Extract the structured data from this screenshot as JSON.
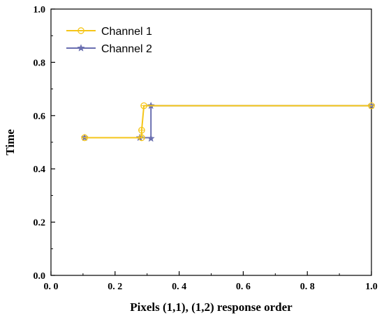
{
  "chart_data": {
    "type": "line",
    "title": "",
    "xlabel": "Pixels (1,1), (1,2) response order",
    "ylabel": "Time",
    "xlim": [
      0.0,
      1.0
    ],
    "ylim": [
      0.0,
      1.0
    ],
    "x_ticks": [
      0.0,
      0.2,
      0.4,
      0.6,
      0.8,
      1.0
    ],
    "x_tick_labels": [
      "0. 0",
      "0. 2",
      "0. 4",
      "0. 6",
      "0. 8",
      "1.0"
    ],
    "y_ticks": [
      0.0,
      0.2,
      0.4,
      0.6,
      0.8,
      1.0
    ],
    "y_tick_labels": [
      "0.0",
      "0.2",
      "0.4",
      "0.6",
      "0.8",
      "1.0"
    ],
    "grid": false,
    "legend_position": "top-left",
    "series": [
      {
        "name": "Channel 1",
        "color": "#f5c518",
        "marker": "circle",
        "x": [
          0.105,
          0.283,
          0.283,
          0.29,
          1.0
        ],
        "y": [
          0.517,
          0.517,
          0.545,
          0.637,
          0.637
        ],
        "step_points": [
          [
            0.105,
            0.517
          ],
          [
            0.283,
            0.517
          ],
          [
            0.283,
            0.545
          ],
          [
            0.29,
            0.637
          ],
          [
            1.0,
            0.637
          ]
        ],
        "marker_points": [
          [
            0.105,
            0.517
          ],
          [
            0.283,
            0.517
          ],
          [
            0.283,
            0.545
          ],
          [
            0.29,
            0.637
          ],
          [
            1.0,
            0.637
          ]
        ]
      },
      {
        "name": "Channel 2",
        "color": "#6a6fb0",
        "marker": "star",
        "x": [
          0.105,
          0.277,
          0.312,
          0.312,
          1.0
        ],
        "y": [
          0.517,
          0.517,
          0.514,
          0.637,
          0.637
        ],
        "step_points": [
          [
            0.105,
            0.517
          ],
          [
            0.312,
            0.517
          ],
          [
            0.312,
            0.637
          ],
          [
            1.0,
            0.637
          ]
        ],
        "marker_points": [
          [
            0.105,
            0.517
          ],
          [
            0.277,
            0.517
          ],
          [
            0.312,
            0.514
          ],
          [
            0.312,
            0.637
          ],
          [
            1.0,
            0.637
          ]
        ]
      }
    ]
  }
}
